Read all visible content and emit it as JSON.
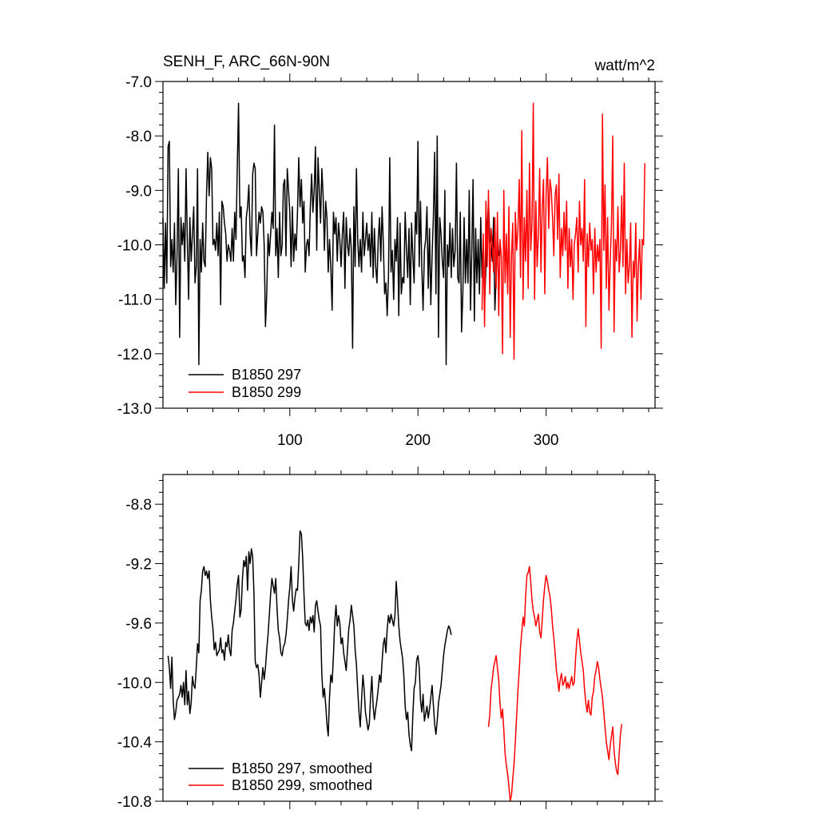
{
  "chart_data": [
    {
      "type": "line",
      "title": "SENH_F, ARC_66N-90N",
      "units": "watt/m^2",
      "xlim": [
        1,
        385
      ],
      "ylim": [
        -13.0,
        -7.0
      ],
      "yticks": [
        "-7.0",
        "-8.0",
        "-9.0",
        "-10.0",
        "-11.0",
        "-12.0",
        "-13.0"
      ],
      "ytick_values": [
        -7.0,
        -8.0,
        -9.0,
        -10.0,
        -11.0,
        -12.0,
        -13.0
      ],
      "xticks": [
        "100",
        "200",
        "300"
      ],
      "xtick_values": [
        100,
        200,
        300
      ],
      "legend_position": "bottom-left",
      "series": [
        {
          "name": "B1850 297",
          "color": "#000000",
          "x_start": 1,
          "values": [
            -9.5,
            -10.8,
            -9.6,
            -10.7,
            -8.2,
            -8.1,
            -10.4,
            -9.9,
            -10.5,
            -9.6,
            -11.1,
            -10.2,
            -8.6,
            -11.7,
            -9.5,
            -10.0,
            -9.6,
            -10.3,
            -8.6,
            -9.9,
            -11.0,
            -9.5,
            -10.3,
            -9.8,
            -9.3,
            -10.7,
            -10.4,
            -8.6,
            -12.2,
            -9.9,
            -10.5,
            -9.6,
            -10.3,
            -10.4,
            -9.1,
            -8.3,
            -9.1,
            -8.4,
            -8.6,
            -10.0,
            -9.9,
            -10.1,
            -9.6,
            -10.2,
            -9.4,
            -11.1,
            -9.2,
            -9.3,
            -9.6,
            -9.8,
            -10.3,
            -10.0,
            -10.1,
            -10.3,
            -9.7,
            -10.3,
            -9.4,
            -9.9,
            -8.6,
            -7.4,
            -9.5,
            -9.3,
            -10.3,
            -10.2,
            -10.6,
            -9.5,
            -9.3,
            -8.9,
            -9.8,
            -10.2,
            -8.7,
            -8.5,
            -8.6,
            -10.2,
            -9.8,
            -9.4,
            -9.6,
            -9.3,
            -9.4,
            -10.0,
            -11.5,
            -10.9,
            -9.8,
            -10.2,
            -9.8,
            -9.4,
            -9.7,
            -7.8,
            -10.2,
            -9.7,
            -10.6,
            -9.4,
            -10.2,
            -10.0,
            -8.9,
            -8.8,
            -10.2,
            -8.6,
            -9.0,
            -9.4,
            -10.4,
            -9.3,
            -10.3,
            -9.8,
            -10.1,
            -9.4,
            -8.4,
            -9.3,
            -8.8,
            -9.6,
            -9.2,
            -10.5,
            -10.0,
            -9.9,
            -10.2,
            -9.3,
            -8.7,
            -9.4,
            -9.0,
            -8.2,
            -10.1,
            -8.4,
            -9.0,
            -9.6,
            -8.6,
            -9.1,
            -10.1,
            -9.2,
            -9.5,
            -10.5,
            -9.9,
            -10.4,
            -11.2,
            -9.4,
            -9.8,
            -9.5,
            -10.3,
            -9.6,
            -9.9,
            -10.4,
            -9.8,
            -9.4,
            -10.8,
            -9.5,
            -10.0,
            -10.2,
            -9.7,
            -10.1,
            -11.9,
            -9.3,
            -10.4,
            -8.6,
            -9.9,
            -10.4,
            -9.9,
            -10.5,
            -9.4,
            -10.2,
            -9.9,
            -9.6,
            -10.1,
            -9.8,
            -10.4,
            -9.4,
            -10.6,
            -9.7,
            -10.4,
            -10.7,
            -9.9,
            -9.5,
            -10.3,
            -9.3,
            -10.0,
            -10.9,
            -10.7,
            -11.3,
            -10.6,
            -8.4,
            -10.5,
            -10.1,
            -11.0,
            -9.9,
            -10.3,
            -9.5,
            -11.3,
            -9.6,
            -10.9,
            -10.6,
            -10.7,
            -9.4,
            -10.1,
            -10.6,
            -9.7,
            -11.1,
            -9.6,
            -10.2,
            -10.7,
            -9.4,
            -9.8,
            -8.1,
            -10.4,
            -9.2,
            -10.4,
            -11.2,
            -10.1,
            -9.9,
            -9.3,
            -10.8,
            -9.7,
            -11.1,
            -10.2,
            -9.5,
            -8.3,
            -10.9,
            -8.0,
            -11.7,
            -9.5,
            -9.8,
            -10.3,
            -10.6,
            -9.0,
            -12.2,
            -10.0,
            -10.4,
            -9.6,
            -10.6,
            -9.7,
            -10.4,
            -10.1,
            -8.5,
            -10.6,
            -10.7,
            -9.4,
            -11.6,
            -10.9,
            -9.5,
            -10.7,
            -9.9,
            -10.7,
            -9.0,
            -11.2,
            -10.1,
            -8.8,
            -11.4,
            -9.7,
            -10.7,
            -9.9,
            -10.9,
            -9.5,
            -10.6,
            -10.0,
            -11.1,
            -10.4,
            -9.7,
            -9.2,
            -9.9,
            -10.0,
            -10.3,
            -9.5,
            -11.2,
            -10.6,
            -9.8,
            -10.2,
            -10.1
          ]
        },
        {
          "name": "B1850 299",
          "color": "#ff0000",
          "x_start": 250,
          "values": [
            -11.2,
            -9.8,
            -11.5,
            -9.2,
            -10.4,
            -9.0,
            -10.9,
            -9.7,
            -10.0,
            -10.5,
            -9.5,
            -10.8,
            -9.4,
            -11.3,
            -9.9,
            -10.2,
            -12.0,
            -9.0,
            -10.7,
            -9.8,
            -10.9,
            -9.3,
            -11.7,
            -10.2,
            -9.6,
            -12.1,
            -9.4,
            -10.1,
            -9.7,
            -8.8,
            -10.6,
            -7.9,
            -11.0,
            -9.5,
            -10.3,
            -9.0,
            -10.8,
            -8.5,
            -10.1,
            -9.6,
            -7.4,
            -11.0,
            -9.2,
            -10.4,
            -9.8,
            -8.6,
            -10.5,
            -9.3,
            -8.8,
            -10.9,
            -9.1,
            -8.4,
            -9.7,
            -8.8,
            -9.0,
            -9.5,
            -10.2,
            -9.1,
            -8.9,
            -9.9,
            -8.7,
            -10.6,
            -9.7,
            -10.2,
            -9.4,
            -10.1,
            -9.2,
            -10.8,
            -9.7,
            -10.4,
            -9.9,
            -11.0,
            -10.0,
            -9.8,
            -9.5,
            -10.5,
            -9.2,
            -10.0,
            -9.7,
            -10.3,
            -8.8,
            -11.5,
            -9.8,
            -10.4,
            -9.6,
            -10.1,
            -9.9,
            -10.9,
            -9.7,
            -10.5,
            -10.0,
            -10.3,
            -9.9,
            -11.9,
            -7.6,
            -10.1,
            -8.9,
            -10.8,
            -9.5,
            -11.2,
            -10.3,
            -9.6,
            -8.0,
            -11.6,
            -9.9,
            -10.3,
            -9.3,
            -10.5,
            -10.1,
            -9.1,
            -10.4,
            -8.5,
            -10.9,
            -9.9,
            -10.7,
            -10.4,
            -9.6,
            -11.7,
            -10.3,
            -10.6,
            -9.6,
            -11.4,
            -10.4,
            -9.9,
            -11.0,
            -9.9,
            -10.0,
            -8.5
          ]
        }
      ]
    },
    {
      "type": "line",
      "xlim": [
        1,
        385
      ],
      "ylim": [
        -10.8,
        -8.6
      ],
      "yticks": [
        "-8.8",
        "-9.2",
        "-9.6",
        "-10.0",
        "-10.4",
        "-10.8"
      ],
      "ytick_values": [
        -8.8,
        -9.2,
        -9.6,
        -10.0,
        -10.4,
        -10.8
      ],
      "legend_position": "bottom-left",
      "series": [
        {
          "name": "B1850 297, smoothed",
          "color": "#000000",
          "x_start": 5,
          "values": [
            -9.82,
            -9.9,
            -10.04,
            -9.83,
            -10.12,
            -10.25,
            -10.2,
            -10.12,
            -10.1,
            -10.08,
            -10.02,
            -10.1,
            -10.0,
            -10.15,
            -9.92,
            -10.15,
            -10.06,
            -10.21,
            -10.14,
            -9.96,
            -10.02,
            -10.04,
            -9.9,
            -9.74,
            -9.8,
            -9.45,
            -9.38,
            -9.25,
            -9.22,
            -9.28,
            -9.25,
            -9.3,
            -9.25,
            -9.45,
            -9.56,
            -9.64,
            -9.78,
            -9.73,
            -9.82,
            -9.8,
            -9.78,
            -9.7,
            -9.8,
            -9.78,
            -9.85,
            -9.73,
            -9.76,
            -9.68,
            -9.78,
            -9.82,
            -9.65,
            -9.6,
            -9.52,
            -9.44,
            -9.34,
            -9.28,
            -9.56,
            -9.51,
            -9.3,
            -9.18,
            -9.22,
            -9.15,
            -9.38,
            -9.12,
            -9.2,
            -9.1,
            -9.15,
            -9.4,
            -9.86,
            -9.9,
            -9.88,
            -9.95,
            -10.1,
            -10.0,
            -9.9,
            -9.98,
            -9.9,
            -9.78,
            -9.68,
            -9.55,
            -9.4,
            -9.3,
            -9.35,
            -9.4,
            -9.3,
            -9.5,
            -9.65,
            -9.7,
            -9.8,
            -9.82,
            -9.76,
            -9.74,
            -9.68,
            -9.58,
            -9.45,
            -9.36,
            -9.22,
            -9.44,
            -9.52,
            -9.43,
            -9.37,
            -9.38,
            -9.2,
            -8.98,
            -9.0,
            -9.16,
            -9.4,
            -9.6,
            -9.62,
            -9.58,
            -9.65,
            -9.56,
            -9.6,
            -9.55,
            -9.66,
            -9.48,
            -9.45,
            -9.52,
            -9.58,
            -9.62,
            -9.95,
            -10.1,
            -10.04,
            -10.15,
            -10.28,
            -10.36,
            -10.1,
            -9.95,
            -10.0,
            -9.82,
            -9.6,
            -9.48,
            -9.62,
            -9.55,
            -9.6,
            -9.74,
            -9.7,
            -9.8,
            -9.86,
            -9.92,
            -9.78,
            -9.64,
            -9.58,
            -9.48,
            -9.55,
            -9.62,
            -9.78,
            -9.88,
            -10.05,
            -10.2,
            -10.3,
            -10.12,
            -9.95,
            -10.05,
            -10.2,
            -10.26,
            -10.32,
            -10.28,
            -10.1,
            -9.96,
            -10.16,
            -10.25,
            -10.18,
            -10.12,
            -10.04,
            -9.95,
            -10.0,
            -9.86,
            -9.74,
            -9.7,
            -9.8,
            -9.64,
            -9.55,
            -9.6,
            -9.54,
            -9.58,
            -9.62,
            -9.55,
            -9.32,
            -9.45,
            -9.62,
            -9.72,
            -9.78,
            -9.84,
            -9.96,
            -10.16,
            -10.25,
            -10.2,
            -10.35,
            -10.42,
            -10.46,
            -10.22,
            -10.04,
            -10.0,
            -9.85,
            -9.82,
            -9.9,
            -10.12,
            -10.2,
            -10.08,
            -10.26,
            -10.21,
            -10.16,
            -10.24,
            -10.18,
            -10.1,
            -10.02,
            -10.15,
            -10.28,
            -10.35,
            -10.26,
            -10.14,
            -10.08,
            -10.02,
            -9.92,
            -9.82,
            -9.75,
            -9.7,
            -9.65,
            -9.62,
            -9.64,
            -9.68
          ]
        },
        {
          "name": "B1850 299, smoothed",
          "color": "#ff0000",
          "x_start": 255,
          "values": [
            -10.3,
            -10.22,
            -10.05,
            -9.98,
            -9.9,
            -9.86,
            -9.82,
            -9.9,
            -9.98,
            -10.14,
            -10.24,
            -10.18,
            -10.32,
            -10.48,
            -10.56,
            -10.62,
            -10.7,
            -10.8,
            -10.76,
            -10.65,
            -10.55,
            -10.4,
            -10.22,
            -10.05,
            -9.92,
            -9.76,
            -9.66,
            -9.56,
            -9.62,
            -9.42,
            -9.28,
            -9.26,
            -9.22,
            -9.32,
            -9.45,
            -9.52,
            -9.56,
            -9.62,
            -9.58,
            -9.54,
            -9.66,
            -9.7,
            -9.58,
            -9.44,
            -9.35,
            -9.28,
            -9.32,
            -9.38,
            -9.42,
            -9.5,
            -9.62,
            -9.7,
            -9.8,
            -9.92,
            -9.98,
            -10.06,
            -9.98,
            -9.94,
            -10.02,
            -10.0,
            -9.96,
            -10.04,
            -10.0,
            -10.04,
            -10.0,
            -9.96,
            -10.02,
            -10.0,
            -9.84,
            -9.72,
            -9.64,
            -9.72,
            -9.8,
            -9.86,
            -9.92,
            -10.05,
            -10.14,
            -10.2,
            -10.12,
            -10.2,
            -10.22,
            -10.1,
            -10.06,
            -9.96,
            -9.92,
            -9.86,
            -9.9,
            -9.98,
            -10.04,
            -10.1,
            -10.2,
            -10.3,
            -10.4,
            -10.46,
            -10.52,
            -10.42,
            -10.36,
            -10.3,
            -10.46,
            -10.54,
            -10.6,
            -10.62,
            -10.48,
            -10.35,
            -10.28
          ]
        }
      ]
    }
  ]
}
